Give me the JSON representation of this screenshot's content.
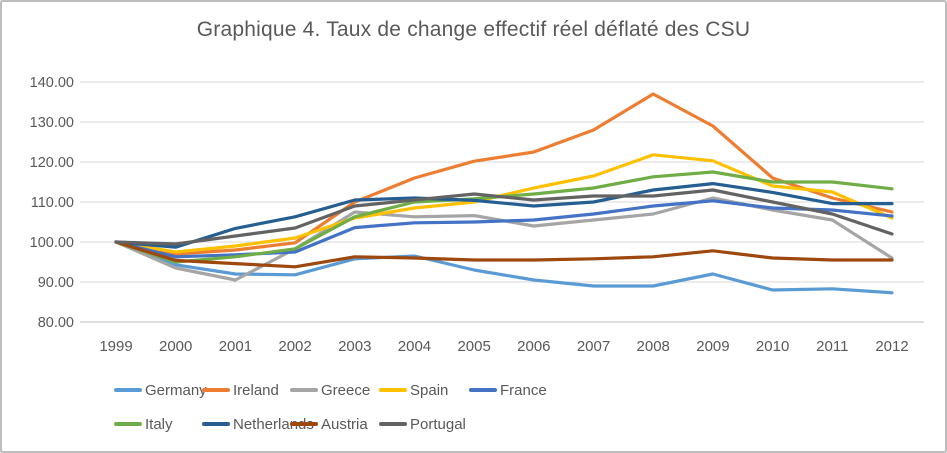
{
  "title": "Graphique 4. Taux de change effectif réel déflaté des CSU",
  "chart_data": {
    "type": "line",
    "title": "Graphique 4. Taux de change effectif réel déflaté des CSU",
    "x": [
      1999,
      2000,
      2001,
      2002,
      2003,
      2004,
      2005,
      2006,
      2007,
      2008,
      2009,
      2010,
      2011,
      2012
    ],
    "x_tick_labels": [
      "1999",
      "2000",
      "2001",
      "2002",
      "2003",
      "2004",
      "2005",
      "2006",
      "2007",
      "2008",
      "2009",
      "2010",
      "2011",
      "2012"
    ],
    "y_ticks": [
      80,
      90,
      100,
      110,
      120,
      130,
      140
    ],
    "y_tick_labels": [
      "80.00",
      "90.00",
      "100.00",
      "110.00",
      "120.00",
      "130.00",
      "140.00"
    ],
    "ylim": [
      80,
      140
    ],
    "grid": true,
    "gridline_color": "#d9d9d9",
    "axis_line_color": "#bfbfbf",
    "axis_text_color": "#595959",
    "legend_position": "bottom",
    "series": [
      {
        "name": "Germany",
        "color": "#5B9BD5",
        "values": [
          100,
          94.3,
          92.0,
          91.8,
          95.8,
          96.5,
          93.0,
          90.5,
          89.0,
          89.0,
          92.0,
          88.0,
          88.3,
          87.3
        ]
      },
      {
        "name": "Ireland",
        "color": "#ED7D31",
        "values": [
          100,
          97.0,
          98.0,
          99.8,
          110.0,
          116.0,
          120.2,
          122.5,
          128.0,
          137.0,
          129.0,
          116.0,
          111.0,
          107.5
        ]
      },
      {
        "name": "Greece",
        "color": "#A5A5A5",
        "values": [
          100,
          93.5,
          90.5,
          98.3,
          107.5,
          106.3,
          106.6,
          104.0,
          105.5,
          107.0,
          111.0,
          108.0,
          105.5,
          96.0
        ]
      },
      {
        "name": "Spain",
        "color": "#FFC000",
        "values": [
          100,
          97.5,
          99.0,
          101.0,
          106.0,
          108.5,
          110.0,
          113.5,
          116.5,
          121.8,
          120.3,
          114.0,
          112.5,
          106.0
        ]
      },
      {
        "name": "France",
        "color": "#4472C4",
        "values": [
          100,
          96.3,
          96.8,
          97.5,
          103.6,
          104.8,
          105.0,
          105.5,
          107.0,
          109.0,
          110.3,
          108.5,
          108.0,
          106.5
        ]
      },
      {
        "name": "Italy",
        "color": "#70AD47",
        "values": [
          100,
          95.0,
          96.3,
          98.3,
          106.3,
          110.0,
          110.8,
          112.0,
          113.5,
          116.3,
          117.5,
          115.0,
          115.0,
          113.3
        ]
      },
      {
        "name": "Netherlands",
        "color": "#255E91",
        "values": [
          100,
          98.7,
          103.4,
          106.3,
          110.5,
          111.0,
          110.4,
          109.0,
          110.0,
          113.0,
          114.6,
          112.4,
          109.6,
          109.6
        ]
      },
      {
        "name": "Austria",
        "color": "#9E480E",
        "values": [
          100,
          95.4,
          94.6,
          93.8,
          96.3,
          96.0,
          95.5,
          95.5,
          95.8,
          96.3,
          97.8,
          96.0,
          95.5,
          95.5
        ]
      },
      {
        "name": "Portugal",
        "color": "#636363",
        "values": [
          100,
          99.5,
          101.5,
          103.5,
          109.0,
          110.5,
          112.0,
          110.5,
          111.5,
          111.5,
          113.0,
          110.0,
          107.0,
          102.0
        ]
      }
    ]
  }
}
